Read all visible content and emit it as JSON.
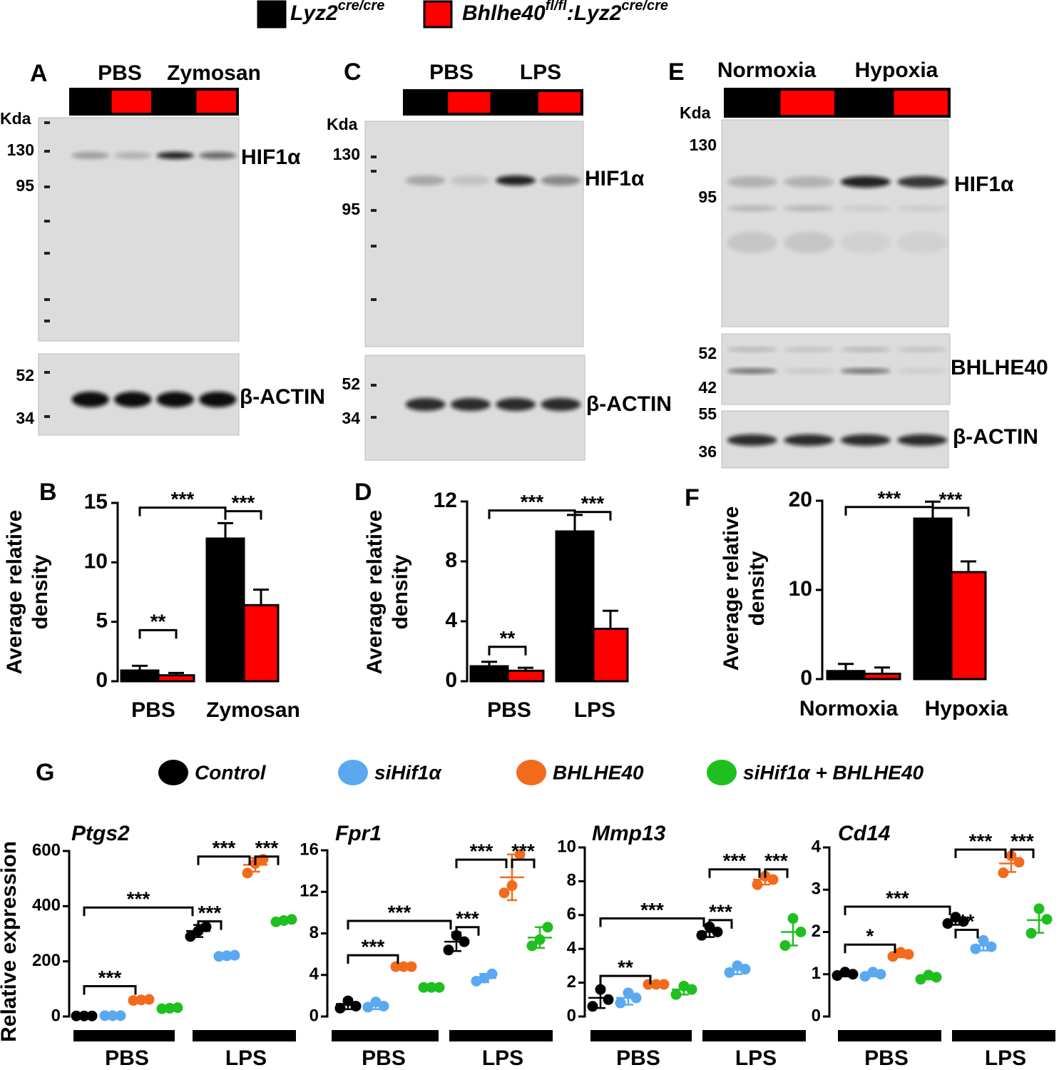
{
  "legend": [
    {
      "segments": [
        {
          "text": "Lyz2"
        },
        {
          "text": "cre/cre",
          "sup": true
        }
      ],
      "color": "#000000"
    },
    {
      "segments": [
        {
          "text": "Bhlhe40"
        },
        {
          "text": "fl/fl",
          "sup": true
        },
        {
          "text": ":Lyz2"
        },
        {
          "text": "cre/cre",
          "sup": true
        }
      ],
      "color": "#ff0000"
    }
  ],
  "blots": [
    {
      "label": "A",
      "conditions": [
        "PBS",
        "Zymosan"
      ],
      "kda_label": "Kda",
      "membranes": [
        {
          "markers": [
            "130",
            "95"
          ],
          "target": "HIF1α"
        },
        {
          "markers": [
            "52",
            "34"
          ],
          "target": "β-ACTIN"
        }
      ]
    },
    {
      "label": "C",
      "conditions": [
        "PBS",
        "LPS"
      ],
      "kda_label": "Kda",
      "membranes": [
        {
          "markers": [
            "130",
            "95"
          ],
          "target": "HIF1α"
        },
        {
          "markers": [
            "52",
            "34"
          ],
          "target": "β-ACTIN"
        }
      ]
    },
    {
      "label": "E",
      "conditions": [
        "Normoxia",
        "Hypoxia"
      ],
      "kda_label": "Kda",
      "membranes": [
        {
          "markers": [
            "130",
            "95"
          ],
          "target": "HIF1α"
        },
        {
          "markers": [
            "52",
            "42"
          ],
          "target": "BHLHE40"
        },
        {
          "markers": [
            "55",
            "36"
          ],
          "target": "β-ACTIN"
        }
      ]
    }
  ],
  "dot_legend": {
    "label": "G",
    "entries": [
      {
        "name": "Control",
        "color": "#000000"
      },
      {
        "name": "siHif1α",
        "color": "#5aa9f0"
      },
      {
        "name": "BHLHE40",
        "color": "#f26b1d"
      },
      {
        "name": "siHif1α + BHLHE40",
        "color": "#1fbf1f"
      }
    ]
  },
  "chart_data": [
    {
      "type": "bar",
      "panel": "B",
      "ylabel": [
        "Average relative",
        "density"
      ],
      "categories": [
        "PBS",
        "Zymosan"
      ],
      "series": [
        {
          "color": "#000000",
          "values": [
            0.9,
            12
          ],
          "errors": [
            0.4,
            1.3
          ]
        },
        {
          "color": "#ff0000",
          "values": [
            0.5,
            6.4
          ],
          "errors": [
            0.2,
            1.3
          ]
        }
      ],
      "ylim": [
        0,
        15
      ],
      "yticks": [
        0,
        5,
        10,
        15
      ],
      "annotations": [
        {
          "text": "***"
        },
        {
          "text": "***"
        },
        {
          "text": "**"
        }
      ]
    },
    {
      "type": "bar",
      "panel": "D",
      "ylabel": [
        "Average relative",
        "density"
      ],
      "categories": [
        "PBS",
        "LPS"
      ],
      "series": [
        {
          "color": "#000000",
          "values": [
            1.0,
            10.0
          ],
          "errors": [
            0.3,
            1.1
          ]
        },
        {
          "color": "#ff0000",
          "values": [
            0.7,
            3.5
          ],
          "errors": [
            0.2,
            1.2
          ]
        }
      ],
      "ylim": [
        0,
        12
      ],
      "yticks": [
        0,
        4,
        8,
        12
      ],
      "annotations": [
        {
          "text": "***"
        },
        {
          "text": "***"
        },
        {
          "text": "**"
        }
      ]
    },
    {
      "type": "bar",
      "panel": "F",
      "ylabel": [
        "Average relative",
        "density"
      ],
      "categories": [
        "Normoxia",
        "Hypoxia"
      ],
      "series": [
        {
          "color": "#000000",
          "values": [
            0.9,
            18
          ],
          "errors": [
            0.8,
            1.9
          ]
        },
        {
          "color": "#ff0000",
          "values": [
            0.6,
            12
          ],
          "errors": [
            0.7,
            1.2
          ]
        }
      ],
      "ylim": [
        0,
        20
      ],
      "yticks": [
        0,
        10,
        20
      ],
      "annotations": [
        {
          "text": "***"
        },
        {
          "text": "***"
        }
      ]
    },
    {
      "type": "dot",
      "title": "Ptgs2",
      "ylabel": "Relative expression",
      "categories": [
        "PBS",
        "LPS"
      ],
      "ylim": [
        0,
        600
      ],
      "yticks": [
        0,
        200,
        400,
        600
      ],
      "series": [
        {
          "values": [
            2,
            310
          ],
          "errors": [
            1,
            22
          ],
          "points": [
            [
              2,
              2,
              2
            ],
            [
              290,
              310,
              325
            ]
          ]
        },
        {
          "values": [
            3,
            220
          ],
          "errors": [
            1,
            4
          ],
          "points": [
            [
              3,
              3,
              3
            ],
            [
              218,
              220,
              222
            ]
          ]
        },
        {
          "values": [
            60,
            550
          ],
          "errors": [
            5,
            25
          ],
          "points": [
            [
              58,
              60,
              62
            ],
            [
              520,
              555,
              570
            ]
          ]
        },
        {
          "values": [
            30,
            348
          ],
          "errors": [
            3,
            8
          ],
          "points": [
            [
              28,
              30,
              32
            ],
            [
              343,
              348,
              352
            ]
          ]
        }
      ],
      "annotations": [
        {
          "text": "***"
        },
        {
          "text": "***"
        },
        {
          "text": "***"
        },
        {
          "text": "***"
        },
        {
          "text": "***"
        }
      ]
    },
    {
      "type": "dot",
      "title": "Fpr1",
      "categories": [
        "PBS",
        "LPS"
      ],
      "ylim": [
        0,
        16
      ],
      "yticks": [
        0,
        4,
        8,
        12,
        16
      ],
      "series": [
        {
          "values": [
            1.2,
            7.2
          ],
          "errors": [
            0.5,
            0.9
          ],
          "points": [
            [
              0.8,
              1.5,
              1.0
            ],
            [
              6.4,
              7.8,
              7.2
            ]
          ]
        },
        {
          "values": [
            1.1,
            3.7
          ],
          "errors": [
            0.4,
            0.4
          ],
          "points": [
            [
              0.9,
              1.4,
              1.0
            ],
            [
              3.4,
              3.7,
              4.1
            ]
          ]
        },
        {
          "values": [
            4.8,
            13.4
          ],
          "errors": [
            0.1,
            2.2
          ],
          "points": [
            [
              4.8,
              4.8,
              4.8
            ],
            [
              11.9,
              12.6,
              15.6
            ]
          ]
        },
        {
          "values": [
            2.8,
            7.6
          ],
          "errors": [
            0.1,
            1.0
          ],
          "points": [
            [
              2.8,
              2.8,
              2.8
            ],
            [
              6.8,
              7.4,
              8.6
            ]
          ]
        }
      ],
      "annotations": [
        {
          "text": "***"
        },
        {
          "text": "***"
        },
        {
          "text": "***"
        },
        {
          "text": "***"
        },
        {
          "text": "***"
        }
      ]
    },
    {
      "type": "dot",
      "title": "Mmp13",
      "categories": [
        "PBS",
        "LPS"
      ],
      "ylim": [
        0,
        10
      ],
      "yticks": [
        0,
        2,
        4,
        6,
        8,
        10
      ],
      "series": [
        {
          "values": [
            1.1,
            5.0
          ],
          "errors": [
            0.6,
            0.3
          ],
          "points": [
            [
              0.6,
              1.6,
              1.0
            ],
            [
              4.8,
              5.3,
              5.0
            ]
          ]
        },
        {
          "values": [
            1.1,
            2.8
          ],
          "errors": [
            0.4,
            0.3
          ],
          "points": [
            [
              0.8,
              1.4,
              1.1
            ],
            [
              2.6,
              3.0,
              2.8
            ]
          ]
        },
        {
          "values": [
            1.9,
            8.1
          ],
          "errors": [
            0.05,
            0.3
          ],
          "points": [
            [
              1.9,
              1.9,
              1.9
            ],
            [
              7.8,
              8.3,
              8.1
            ]
          ]
        },
        {
          "values": [
            1.6,
            5.0
          ],
          "errors": [
            0.3,
            0.8
          ],
          "points": [
            [
              1.3,
              1.8,
              1.6
            ],
            [
              4.2,
              5.8,
              5.0
            ]
          ]
        }
      ],
      "annotations": [
        {
          "text": "***"
        },
        {
          "text": "***"
        },
        {
          "text": "***"
        },
        {
          "text": "***"
        },
        {
          "text": "**"
        }
      ]
    },
    {
      "type": "dot",
      "title": "Cd14",
      "categories": [
        "PBS",
        "LPS"
      ],
      "ylim": [
        0,
        4
      ],
      "yticks": [
        0,
        1,
        2,
        3,
        4
      ],
      "series": [
        {
          "values": [
            1.0,
            2.27
          ],
          "errors": [
            0.05,
            0.1
          ],
          "points": [
            [
              0.97,
              1.05,
              1.0
            ],
            [
              2.2,
              2.35,
              2.25
            ]
          ]
        },
        {
          "values": [
            1.0,
            1.68
          ],
          "errors": [
            0.05,
            0.12
          ],
          "points": [
            [
              0.95,
              1.05,
              1.0
            ],
            [
              1.6,
              1.8,
              1.65
            ]
          ]
        },
        {
          "values": [
            1.47,
            3.62
          ],
          "errors": [
            0.07,
            0.2
          ],
          "points": [
            [
              1.42,
              1.52,
              1.47
            ],
            [
              3.4,
              3.8,
              3.65
            ]
          ]
        },
        {
          "values": [
            0.93,
            2.28
          ],
          "errors": [
            0.05,
            0.3
          ],
          "points": [
            [
              0.88,
              0.98,
              0.93
            ],
            [
              1.97,
              2.55,
              2.3
            ]
          ]
        }
      ],
      "annotations": [
        {
          "text": "***"
        },
        {
          "text": "***"
        },
        {
          "text": "***"
        },
        {
          "text": "**"
        },
        {
          "text": "*"
        }
      ]
    }
  ]
}
